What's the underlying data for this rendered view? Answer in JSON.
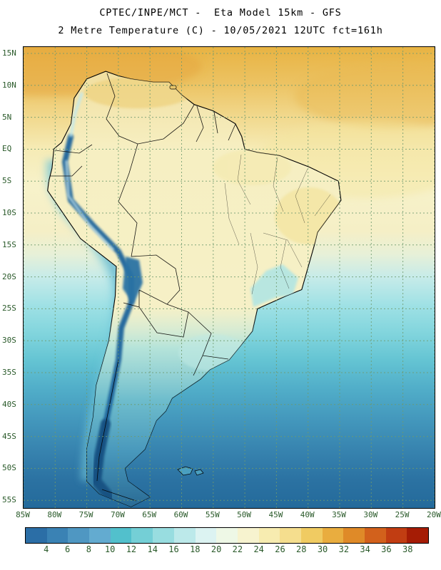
{
  "header": {
    "line1": "CPTEC/INPE/MCT -  Eta Model 15km - GFS",
    "line2": "2 Metre Temperature (C) - 10/05/2021 12UTC fct=161h"
  },
  "map": {
    "lat_labels": [
      "15N",
      "10N",
      "5N",
      "EQ",
      "5S",
      "10S",
      "15S",
      "20S",
      "25S",
      "30S",
      "35S",
      "40S",
      "45S",
      "50S",
      "55S"
    ],
    "lon_labels": [
      "85W",
      "80W",
      "75W",
      "70W",
      "65W",
      "60W",
      "55W",
      "50W",
      "45W",
      "40W",
      "35W",
      "30W",
      "25W",
      "20W"
    ]
  },
  "colorbar": {
    "tick_labels": [
      "4",
      "6",
      "8",
      "10",
      "12",
      "14",
      "16",
      "18",
      "20",
      "22",
      "24",
      "26",
      "28",
      "30",
      "32",
      "34",
      "36",
      "38"
    ],
    "segment_colors": [
      "#2b6ea6",
      "#3a82b4",
      "#4f97c2",
      "#63abd0",
      "#52c0cc",
      "#74cfd6",
      "#98dde0",
      "#bce9ea",
      "#dcf3f2",
      "#eef8e6",
      "#f7f3cf",
      "#f7ecb0",
      "#f5de8e",
      "#f0cb62",
      "#e9ad3f",
      "#df8a28",
      "#d2611c",
      "#c13d12",
      "#a51c05"
    ]
  }
}
